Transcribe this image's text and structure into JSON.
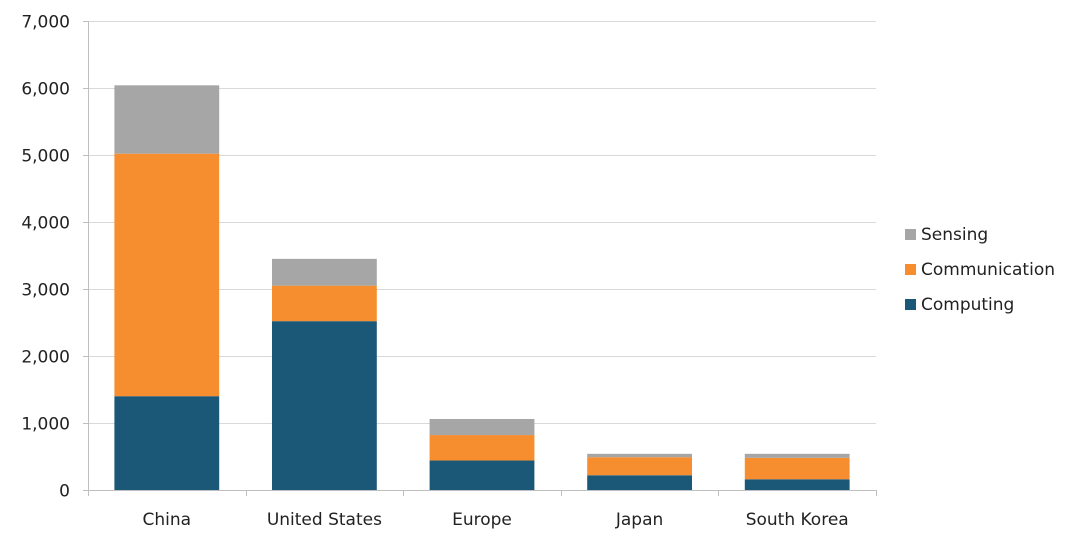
{
  "chart_data": {
    "type": "bar",
    "stacked": true,
    "categories": [
      "China",
      "United States",
      "Europe",
      "Japan",
      "South Korea"
    ],
    "series": [
      {
        "name": "Computing",
        "color": "#1b5878",
        "values": [
          1400,
          2520,
          440,
          220,
          160
        ]
      },
      {
        "name": "Communication",
        "color": "#f68d2e",
        "values": [
          3620,
          530,
          380,
          270,
          320
        ]
      },
      {
        "name": "Sensing",
        "color": "#a6a6a6",
        "values": [
          1020,
          400,
          240,
          50,
          60
        ]
      }
    ],
    "ylim": [
      0,
      7000
    ],
    "yticks": [
      0,
      1000,
      2000,
      3000,
      4000,
      5000,
      6000,
      7000
    ],
    "ytick_labels": [
      "0",
      "1,000",
      "2,000",
      "3,000",
      "4,000",
      "5,000",
      "6,000",
      "7,000"
    ],
    "legend_order": [
      "Sensing",
      "Communication",
      "Computing"
    ],
    "legend_position": "right",
    "grid": true,
    "title": "",
    "xlabel": "",
    "ylabel": ""
  }
}
